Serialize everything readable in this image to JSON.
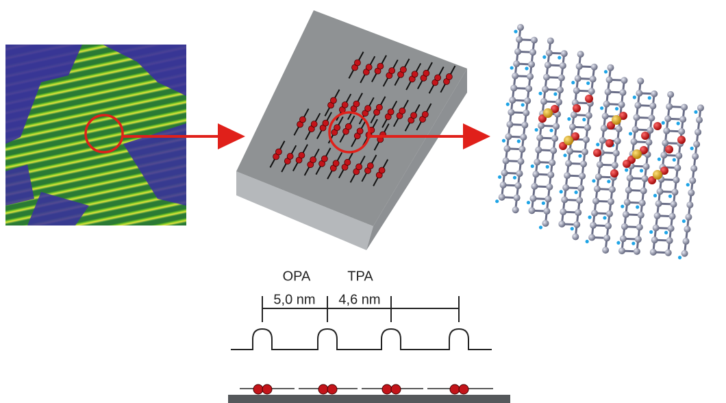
{
  "labels": {
    "opa": "OPA",
    "tpa": "TPA",
    "spacing_opa": "5,0 nm",
    "spacing_tpa": "4,6 nm"
  }
}
